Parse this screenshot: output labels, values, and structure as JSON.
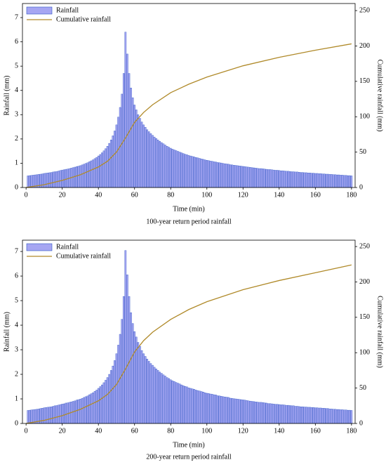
{
  "chart_data": [
    {
      "type": "bar",
      "title": "100-year return period rainfall",
      "xlabel": "Time (min)",
      "ylabel": "Rainfall (mm)",
      "y2label": "Cumulative rainfall (mm)",
      "x": [
        1,
        2,
        3,
        4,
        5,
        6,
        7,
        8,
        9,
        10,
        11,
        12,
        13,
        14,
        15,
        16,
        17,
        18,
        19,
        20,
        21,
        22,
        23,
        24,
        25,
        26,
        27,
        28,
        29,
        30,
        31,
        32,
        33,
        34,
        35,
        36,
        37,
        38,
        39,
        40,
        41,
        42,
        43,
        44,
        45,
        46,
        47,
        48,
        49,
        50,
        51,
        52,
        53,
        54,
        55,
        56,
        57,
        58,
        59,
        60,
        61,
        62,
        63,
        64,
        65,
        66,
        67,
        68,
        69,
        70,
        71,
        72,
        73,
        74,
        75,
        76,
        77,
        78,
        79,
        80,
        81,
        82,
        83,
        84,
        85,
        86,
        87,
        88,
        89,
        90,
        91,
        92,
        93,
        94,
        95,
        96,
        97,
        98,
        99,
        100,
        101,
        102,
        103,
        104,
        105,
        106,
        107,
        108,
        109,
        110,
        111,
        112,
        113,
        114,
        115,
        116,
        117,
        118,
        119,
        120,
        121,
        122,
        123,
        124,
        125,
        126,
        127,
        128,
        129,
        130,
        131,
        132,
        133,
        134,
        135,
        136,
        137,
        138,
        139,
        140,
        141,
        142,
        143,
        144,
        145,
        146,
        147,
        148,
        149,
        150,
        151,
        152,
        153,
        154,
        155,
        156,
        157,
        158,
        159,
        160,
        161,
        162,
        163,
        164,
        165,
        166,
        167,
        168,
        169,
        170,
        171,
        172,
        173,
        174,
        175,
        176,
        177,
        178,
        179,
        180
      ],
      "series": [
        {
          "name": "Rainfall",
          "type": "bar",
          "color": "#a6a6f2",
          "edge": "#2f55c4",
          "values": [
            0.48,
            0.49,
            0.5,
            0.51,
            0.52,
            0.53,
            0.54,
            0.55,
            0.56,
            0.58,
            0.59,
            0.6,
            0.61,
            0.62,
            0.64,
            0.65,
            0.66,
            0.68,
            0.7,
            0.72,
            0.73,
            0.75,
            0.76,
            0.78,
            0.8,
            0.82,
            0.84,
            0.86,
            0.88,
            0.9,
            0.93,
            0.96,
            0.99,
            1.02,
            1.06,
            1.1,
            1.14,
            1.19,
            1.24,
            1.3,
            1.36,
            1.43,
            1.51,
            1.6,
            1.7,
            1.82,
            1.96,
            2.13,
            2.33,
            2.58,
            2.9,
            3.3,
            3.85,
            4.7,
            6.4,
            5.5,
            4.7,
            4.1,
            3.7,
            3.4,
            3.2,
            3.0,
            2.85,
            2.7,
            2.58,
            2.48,
            2.38,
            2.3,
            2.22,
            2.15,
            2.08,
            2.02,
            1.96,
            1.9,
            1.85,
            1.8,
            1.75,
            1.7,
            1.66,
            1.62,
            1.58,
            1.55,
            1.52,
            1.49,
            1.46,
            1.43,
            1.4,
            1.37,
            1.35,
            1.32,
            1.3,
            1.28,
            1.26,
            1.24,
            1.22,
            1.2,
            1.18,
            1.16,
            1.14,
            1.12,
            1.11,
            1.09,
            1.08,
            1.06,
            1.05,
            1.03,
            1.02,
            1.01,
            0.99,
            0.98,
            0.97,
            0.96,
            0.94,
            0.93,
            0.92,
            0.91,
            0.9,
            0.89,
            0.88,
            0.87,
            0.86,
            0.85,
            0.84,
            0.83,
            0.82,
            0.81,
            0.8,
            0.79,
            0.78,
            0.78,
            0.77,
            0.76,
            0.75,
            0.74,
            0.74,
            0.73,
            0.72,
            0.71,
            0.71,
            0.7,
            0.69,
            0.69,
            0.68,
            0.67,
            0.67,
            0.66,
            0.65,
            0.65,
            0.64,
            0.64,
            0.63,
            0.62,
            0.62,
            0.61,
            0.61,
            0.6,
            0.6,
            0.59,
            0.59,
            0.58,
            0.58,
            0.57,
            0.57,
            0.56,
            0.56,
            0.55,
            0.55,
            0.54,
            0.54,
            0.53,
            0.53,
            0.52,
            0.52,
            0.51,
            0.51,
            0.5,
            0.5,
            0.49,
            0.49,
            0.48
          ]
        },
        {
          "name": "Cumulative rainfall",
          "type": "line",
          "axis": "y2",
          "color": "#b08a2a",
          "x": [
            0,
            10,
            20,
            30,
            40,
            45,
            50,
            55,
            60,
            65,
            70,
            80,
            90,
            100,
            120,
            140,
            160,
            180
          ],
          "values": [
            0,
            4,
            10,
            18,
            29,
            37,
            50,
            70,
            92,
            106,
            117,
            134,
            146,
            156,
            172,
            184,
            194,
            203
          ]
        }
      ],
      "xlim": [
        -2,
        182
      ],
      "xticks": [
        0,
        20,
        40,
        60,
        80,
        100,
        120,
        140,
        160,
        180
      ],
      "ylim": [
        0,
        7.58
      ],
      "yticks": [
        0,
        1,
        2,
        3,
        4,
        5,
        6,
        7
      ],
      "y2lim": [
        0,
        260
      ],
      "y2ticks": [
        0,
        50,
        100,
        150,
        200,
        250
      ],
      "legend": "upper left"
    },
    {
      "type": "bar",
      "title": "200-year return period rainfall",
      "xlabel": "Time (min)",
      "ylabel": "Rainfall (mm)",
      "y2label": "Cumulative rainfall (mm)",
      "x": [
        1,
        2,
        3,
        4,
        5,
        6,
        7,
        8,
        9,
        10,
        11,
        12,
        13,
        14,
        15,
        16,
        17,
        18,
        19,
        20,
        21,
        22,
        23,
        24,
        25,
        26,
        27,
        28,
        29,
        30,
        31,
        32,
        33,
        34,
        35,
        36,
        37,
        38,
        39,
        40,
        41,
        42,
        43,
        44,
        45,
        46,
        47,
        48,
        49,
        50,
        51,
        52,
        53,
        54,
        55,
        56,
        57,
        58,
        59,
        60,
        61,
        62,
        63,
        64,
        65,
        66,
        67,
        68,
        69,
        70,
        71,
        72,
        73,
        74,
        75,
        76,
        77,
        78,
        79,
        80,
        81,
        82,
        83,
        84,
        85,
        86,
        87,
        88,
        89,
        90,
        91,
        92,
        93,
        94,
        95,
        96,
        97,
        98,
        99,
        100,
        101,
        102,
        103,
        104,
        105,
        106,
        107,
        108,
        109,
        110,
        111,
        112,
        113,
        114,
        115,
        116,
        117,
        118,
        119,
        120,
        121,
        122,
        123,
        124,
        125,
        126,
        127,
        128,
        129,
        130,
        131,
        132,
        133,
        134,
        135,
        136,
        137,
        138,
        139,
        140,
        141,
        142,
        143,
        144,
        145,
        146,
        147,
        148,
        149,
        150,
        151,
        152,
        153,
        154,
        155,
        156,
        157,
        158,
        159,
        160,
        161,
        162,
        163,
        164,
        165,
        166,
        167,
        168,
        169,
        170,
        171,
        172,
        173,
        174,
        175,
        176,
        177,
        178,
        179,
        180
      ],
      "series": [
        {
          "name": "Rainfall",
          "type": "bar",
          "color": "#a6a6f2",
          "edge": "#2f55c4",
          "values": [
            0.53,
            0.54,
            0.55,
            0.56,
            0.57,
            0.58,
            0.59,
            0.61,
            0.62,
            0.64,
            0.65,
            0.66,
            0.67,
            0.68,
            0.7,
            0.72,
            0.73,
            0.75,
            0.77,
            0.79,
            0.8,
            0.83,
            0.84,
            0.86,
            0.88,
            0.9,
            0.92,
            0.95,
            0.97,
            0.99,
            1.02,
            1.06,
            1.09,
            1.12,
            1.17,
            1.21,
            1.25,
            1.31,
            1.36,
            1.43,
            1.5,
            1.57,
            1.66,
            1.76,
            1.87,
            2.0,
            2.16,
            2.34,
            2.56,
            2.84,
            3.19,
            3.63,
            4.24,
            5.17,
            7.04,
            6.05,
            5.17,
            4.51,
            4.07,
            3.74,
            3.52,
            3.3,
            3.14,
            2.97,
            2.84,
            2.73,
            2.62,
            2.53,
            2.44,
            2.37,
            2.29,
            2.22,
            2.16,
            2.09,
            2.04,
            1.98,
            1.93,
            1.87,
            1.83,
            1.78,
            1.74,
            1.71,
            1.67,
            1.64,
            1.61,
            1.57,
            1.54,
            1.51,
            1.49,
            1.45,
            1.43,
            1.41,
            1.39,
            1.36,
            1.34,
            1.32,
            1.3,
            1.28,
            1.25,
            1.23,
            1.22,
            1.2,
            1.19,
            1.17,
            1.16,
            1.13,
            1.12,
            1.11,
            1.09,
            1.08,
            1.07,
            1.06,
            1.03,
            1.02,
            1.01,
            1.0,
            0.99,
            0.98,
            0.97,
            0.96,
            0.95,
            0.94,
            0.92,
            0.91,
            0.9,
            0.89,
            0.88,
            0.87,
            0.86,
            0.86,
            0.85,
            0.84,
            0.83,
            0.81,
            0.81,
            0.8,
            0.79,
            0.78,
            0.78,
            0.77,
            0.76,
            0.76,
            0.75,
            0.74,
            0.74,
            0.73,
            0.72,
            0.72,
            0.7,
            0.7,
            0.69,
            0.68,
            0.68,
            0.67,
            0.67,
            0.66,
            0.66,
            0.65,
            0.65,
            0.64,
            0.64,
            0.63,
            0.63,
            0.62,
            0.62,
            0.61,
            0.61,
            0.59,
            0.59,
            0.58,
            0.58,
            0.57,
            0.57,
            0.56,
            0.56,
            0.55,
            0.55,
            0.54,
            0.54,
            0.53
          ]
        },
        {
          "name": "Cumulative rainfall",
          "type": "line",
          "axis": "y2",
          "color": "#b08a2a",
          "x": [
            0,
            10,
            20,
            30,
            40,
            45,
            50,
            55,
            60,
            65,
            70,
            80,
            90,
            100,
            120,
            140,
            160,
            180
          ],
          "values": [
            0,
            4.4,
            11,
            20,
            32,
            41,
            55,
            77,
            101,
            117,
            129,
            147,
            161,
            172,
            189,
            202,
            213,
            224
          ]
        }
      ],
      "xlim": [
        -2,
        182
      ],
      "xticks": [
        0,
        20,
        40,
        60,
        80,
        100,
        120,
        140,
        160,
        180
      ],
      "ylim": [
        0,
        7.46
      ],
      "yticks": [
        0,
        1,
        2,
        3,
        4,
        5,
        6,
        7
      ],
      "y2lim": [
        0,
        259
      ],
      "y2ticks": [
        0,
        50,
        100,
        150,
        200,
        250
      ],
      "legend": "upper left"
    }
  ]
}
